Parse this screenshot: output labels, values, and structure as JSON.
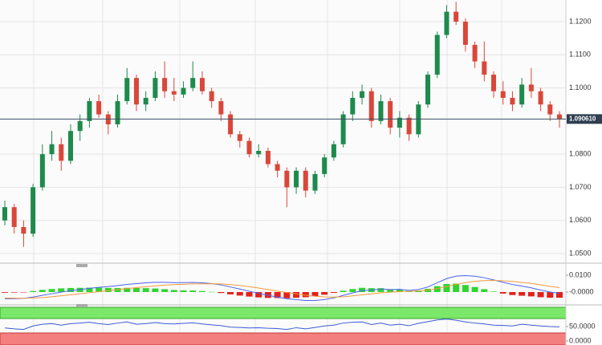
{
  "chart_data": [
    {
      "type": "candlestick",
      "ylim": [
        1.04782,
        1.12654
      ],
      "yticks": [
        {
          "value": 1.12,
          "label": "1.1200"
        },
        {
          "value": 1.11,
          "label": "1.1100"
        },
        {
          "value": 1.1,
          "label": "1.1000"
        },
        {
          "value": 1.08,
          "label": "1.0800"
        },
        {
          "value": 1.07,
          "label": "1.0700"
        },
        {
          "value": 1.06,
          "label": "1.0600"
        },
        {
          "value": 1.05,
          "label": "1.0500"
        }
      ],
      "grid": true,
      "up_color": "#1e8a4c",
      "down_color": "#d9473a",
      "last_price": {
        "value": 1.09061,
        "label": "1.090610"
      },
      "open": [
        1.06,
        1.064,
        1.058,
        1.056,
        1.07,
        1.08,
        1.083,
        1.078,
        1.087,
        1.09,
        1.096,
        1.092,
        1.089,
        1.096,
        1.103,
        1.095,
        1.097,
        1.103,
        1.099,
        1.098,
        1.1,
        1.103,
        1.099,
        1.096,
        1.092,
        1.086,
        1.084,
        1.08,
        1.081,
        1.077,
        1.075,
        1.07,
        1.075,
        1.069,
        1.074,
        1.079,
        1.083,
        1.092,
        1.097,
        1.099,
        1.09,
        1.096,
        1.088,
        1.091,
        1.086,
        1.095,
        1.104,
        1.116,
        1.123,
        1.12,
        1.113,
        1.108,
        1.104,
        1.099,
        1.097,
        1.095,
        1.101,
        1.099,
        1.095,
        1.092
      ],
      "high": [
        1.066,
        1.065,
        1.06,
        1.071,
        1.083,
        1.087,
        1.085,
        1.089,
        1.092,
        1.097,
        1.098,
        1.093,
        1.098,
        1.106,
        1.104,
        1.099,
        1.105,
        1.108,
        1.103,
        1.102,
        1.108,
        1.105,
        1.1,
        1.097,
        1.093,
        1.087,
        1.085,
        1.083,
        1.082,
        1.078,
        1.076,
        1.076,
        1.076,
        1.075,
        1.08,
        1.084,
        1.093,
        1.099,
        1.101,
        1.1,
        1.098,
        1.097,
        1.093,
        1.092,
        1.096,
        1.105,
        1.117,
        1.125,
        1.126,
        1.121,
        1.114,
        1.114,
        1.105,
        1.102,
        1.099,
        1.103,
        1.106,
        1.1,
        1.096,
        1.093
      ],
      "low": [
        1.0585,
        1.056,
        1.052,
        1.055,
        1.069,
        1.078,
        1.075,
        1.077,
        1.084,
        1.088,
        1.091,
        1.086,
        1.088,
        1.095,
        1.093,
        1.093,
        1.096,
        1.097,
        1.096,
        1.097,
        1.099,
        1.098,
        1.094,
        1.09,
        1.085,
        1.082,
        1.079,
        1.079,
        1.076,
        1.073,
        1.064,
        1.068,
        1.067,
        1.068,
        1.073,
        1.078,
        1.082,
        1.09,
        1.095,
        1.088,
        1.089,
        1.086,
        1.085,
        1.084,
        1.085,
        1.094,
        1.103,
        1.115,
        1.119,
        1.111,
        1.106,
        1.102,
        1.097,
        1.095,
        1.093,
        1.094,
        1.097,
        1.093,
        1.09,
        1.088
      ],
      "close": [
        1.064,
        1.058,
        1.056,
        1.07,
        1.08,
        1.083,
        1.078,
        1.087,
        1.09,
        1.096,
        1.092,
        1.089,
        1.096,
        1.103,
        1.095,
        1.097,
        1.103,
        1.099,
        1.098,
        1.1,
        1.103,
        1.099,
        1.096,
        1.092,
        1.086,
        1.084,
        1.08,
        1.081,
        1.077,
        1.075,
        1.07,
        1.075,
        1.069,
        1.074,
        1.079,
        1.083,
        1.092,
        1.097,
        1.099,
        1.09,
        1.096,
        1.088,
        1.091,
        1.086,
        1.095,
        1.104,
        1.116,
        1.123,
        1.12,
        1.113,
        1.108,
        1.104,
        1.099,
        1.097,
        1.095,
        1.101,
        1.099,
        1.095,
        1.092,
        1.0906
      ]
    },
    {
      "type": "macd",
      "ylim": [
        -0.0067,
        0.0148
      ],
      "yticks": [
        {
          "value": 0.01,
          "label": "0.0100"
        },
        {
          "value": 0,
          "label": "-0.0000"
        }
      ],
      "histogram_colors": [
        "#2fd42f",
        "#e3201b"
      ],
      "histogram": [
        -0.0004,
        -0.0003,
        -0.0001,
        0.0006,
        0.0013,
        0.0018,
        0.0022,
        0.0024,
        0.0025,
        0.0026,
        0.0026,
        0.0024,
        0.0024,
        0.0025,
        0.0024,
        0.0023,
        0.0021,
        0.0017,
        0.0012,
        0.001,
        0.0009,
        0.0006,
        0.0001,
        -0.0006,
        -0.0014,
        -0.0021,
        -0.0027,
        -0.0032,
        -0.0035,
        -0.0036,
        -0.0037,
        -0.0034,
        -0.0031,
        -0.0025,
        -0.0016,
        -0.0005,
        0.0008,
        0.0018,
        0.0025,
        0.0023,
        0.0023,
        0.0016,
        0.0014,
        0.0006,
        0.0009,
        0.0019,
        0.0035,
        0.0048,
        0.005,
        0.0042,
        0.003,
        0.0017,
        0.0003,
        -0.0009,
        -0.0018,
        -0.0022,
        -0.0026,
        -0.0031,
        -0.0034,
        -0.0034
      ],
      "series": [
        {
          "color": "#4a63ee",
          "values": [
            -0.004,
            -0.004,
            -0.0038,
            -0.003,
            -0.002,
            -0.001,
            0.0,
            0.0008,
            0.0015,
            0.0022,
            0.0028,
            0.0032,
            0.0038,
            0.0045,
            0.005,
            0.0055,
            0.0058,
            0.0058,
            0.0056,
            0.0056,
            0.0057,
            0.0055,
            0.005,
            0.0042,
            0.003,
            0.0018,
            0.0005,
            -0.0008,
            -0.002,
            -0.003,
            -0.004,
            -0.0045,
            -0.005,
            -0.005,
            -0.0045,
            -0.0035,
            -0.002,
            -0.0005,
            0.0008,
            0.0012,
            0.0018,
            0.0015,
            0.0016,
            0.001,
            0.0015,
            0.003,
            0.0055,
            0.008,
            0.0095,
            0.0098,
            0.0094,
            0.0085,
            0.0072,
            0.0058,
            0.0045,
            0.0035,
            0.0025,
            0.0012,
            0.0,
            -0.0008
          ]
        },
        {
          "color": "#f39a3a",
          "values": [
            -0.0036,
            -0.0037,
            -0.0037,
            -0.0036,
            -0.0033,
            -0.0028,
            -0.0022,
            -0.0016,
            -0.001,
            -0.0004,
            0.0002,
            0.0008,
            0.0014,
            0.002,
            0.0026,
            0.0032,
            0.0037,
            0.0041,
            0.0044,
            0.0046,
            0.0048,
            0.0049,
            0.0049,
            0.0048,
            0.0044,
            0.0039,
            0.0032,
            0.0024,
            0.0015,
            0.0006,
            -0.0003,
            -0.0011,
            -0.0019,
            -0.0025,
            -0.0029,
            -0.003,
            -0.0028,
            -0.0023,
            -0.0017,
            -0.0011,
            -0.0005,
            -0.0001,
            0.0002,
            0.0004,
            0.0006,
            0.0011,
            0.002,
            0.0032,
            0.0045,
            0.0056,
            0.0064,
            0.0068,
            0.0069,
            0.0067,
            0.0063,
            0.0057,
            0.0051,
            0.0043,
            0.0034,
            0.0026
          ]
        }
      ]
    },
    {
      "type": "rsi",
      "ylim": [
        -13.9,
        116.7
      ],
      "yticks": [
        {
          "value": 50,
          "label": "50.0000"
        },
        {
          "value": 0,
          "label": "0.0000"
        }
      ],
      "color": "#3b5bd6",
      "values": [
        45,
        42,
        40,
        52,
        58,
        60,
        55,
        60,
        62,
        65,
        60,
        57,
        62,
        66,
        58,
        60,
        64,
        60,
        59,
        61,
        63,
        59,
        56,
        53,
        48,
        47,
        45,
        46,
        44,
        43,
        40,
        46,
        42,
        47,
        52,
        55,
        62,
        65,
        66,
        57,
        62,
        55,
        58,
        53,
        61,
        67,
        73,
        76,
        72,
        66,
        62,
        59,
        55,
        54,
        52,
        58,
        55,
        52,
        50,
        49
      ]
    }
  ]
}
